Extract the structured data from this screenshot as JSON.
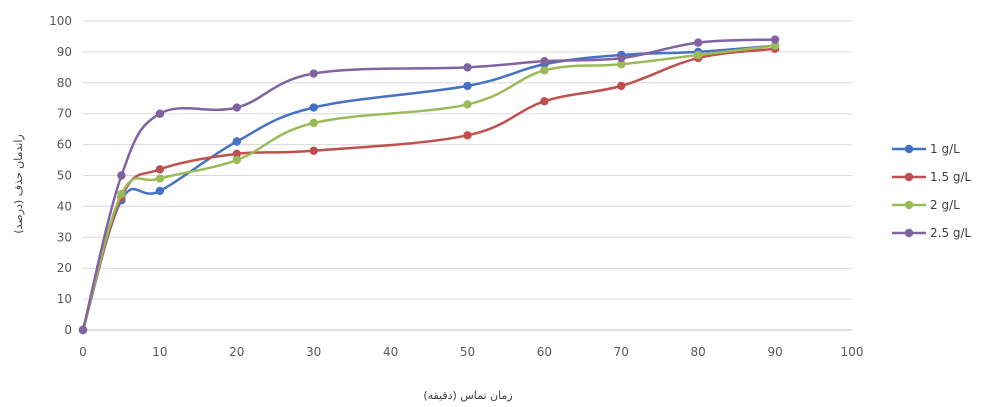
{
  "chart_data": {
    "type": "line",
    "xlabel": "زمان تماس (دقیقه)",
    "ylabel": "راندمان حذف (درصد)",
    "xlim": [
      0,
      100
    ],
    "ylim": [
      0,
      100
    ],
    "x_ticks": [
      0,
      10,
      20,
      30,
      40,
      50,
      60,
      70,
      80,
      90,
      100
    ],
    "y_ticks": [
      0,
      10,
      20,
      30,
      40,
      50,
      60,
      70,
      80,
      90,
      100
    ],
    "grid": "horizontal",
    "legend_position": "right",
    "series": [
      {
        "name": "1 g/L",
        "color": "#4472c4",
        "x": [
          0,
          5,
          10,
          20,
          30,
          50,
          60,
          70,
          80,
          90
        ],
        "y": [
          0,
          42,
          45,
          61,
          72,
          79,
          86,
          89,
          90,
          92
        ]
      },
      {
        "name": "1.5 g/L",
        "color": "#c0504d",
        "x": [
          0,
          5,
          10,
          20,
          30,
          50,
          60,
          70,
          80,
          90
        ],
        "y": [
          0,
          43,
          52,
          57,
          58,
          63,
          74,
          79,
          88,
          91
        ]
      },
      {
        "name": "2 g/L",
        "color": "#9bbb59",
        "x": [
          0,
          5,
          10,
          20,
          30,
          50,
          60,
          70,
          80,
          90
        ],
        "y": [
          0,
          44,
          49,
          55,
          67,
          73,
          84,
          86,
          89,
          92
        ]
      },
      {
        "name": "2.5 g/L",
        "color": "#8064a2",
        "x": [
          0,
          5,
          10,
          20,
          30,
          50,
          60,
          70,
          80,
          90
        ],
        "y": [
          0,
          50,
          70,
          72,
          83,
          85,
          87,
          88,
          93,
          94
        ]
      }
    ]
  }
}
